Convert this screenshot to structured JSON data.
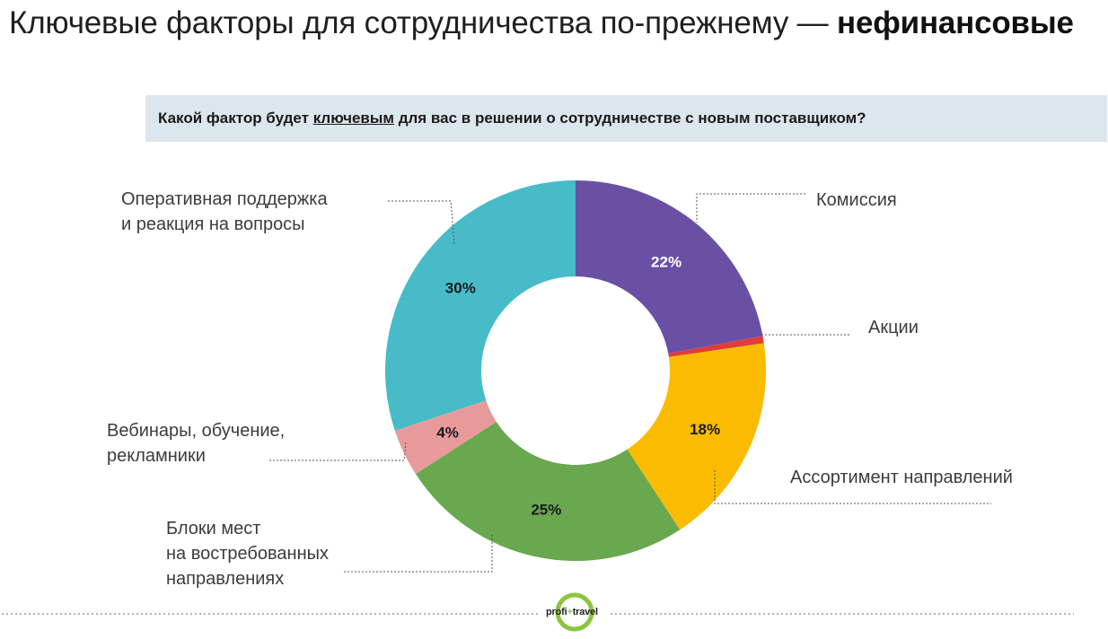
{
  "title": {
    "normal": "Ключевые факторы для сотрудничества по-прежнему —",
    "bold": "нефинансовые"
  },
  "question": {
    "before": "Какой фактор будет ",
    "underlined": "ключевым",
    "after": " для вас в решении о сотрудничестве с новым поставщиком?"
  },
  "labels": {
    "support_l1": "Оперативная поддержка",
    "support_l2": "и реакция на вопросы",
    "commission": "Комиссия",
    "promo": "Акции",
    "assortment": "Ассортимент направлений",
    "blocks_l1": "Блоки мест",
    "blocks_l2": "на востребованных",
    "blocks_l3": "направлениях",
    "webinars_l1": "Вебинары, обучение,",
    "webinars_l2": "рекламники"
  },
  "logo": {
    "left": "profi",
    "plus": "+",
    "right": "travel"
  },
  "chart_data": {
    "type": "pie",
    "donut": true,
    "slices": [
      {
        "name": "Комиссия",
        "value": 22,
        "label": "22%",
        "color": "#6950a5"
      },
      {
        "name": "Акции",
        "value": 0.6,
        "label": "",
        "color": "#e03c3c"
      },
      {
        "name": "Ассортимент направлений",
        "value": 18,
        "label": "18%",
        "color": "#fbbb00"
      },
      {
        "name": "Блоки мест на востребованных направлениях",
        "value": 25,
        "label": "25%",
        "color": "#69a84f"
      },
      {
        "name": "Вебинары, обучение, рекламники",
        "value": 4,
        "label": "4%",
        "color": "#e89a9a"
      },
      {
        "name": "Оперативная поддержка и реакция на вопросы",
        "value": 30,
        "label": "30%",
        "color": "#47bcc8"
      }
    ]
  }
}
